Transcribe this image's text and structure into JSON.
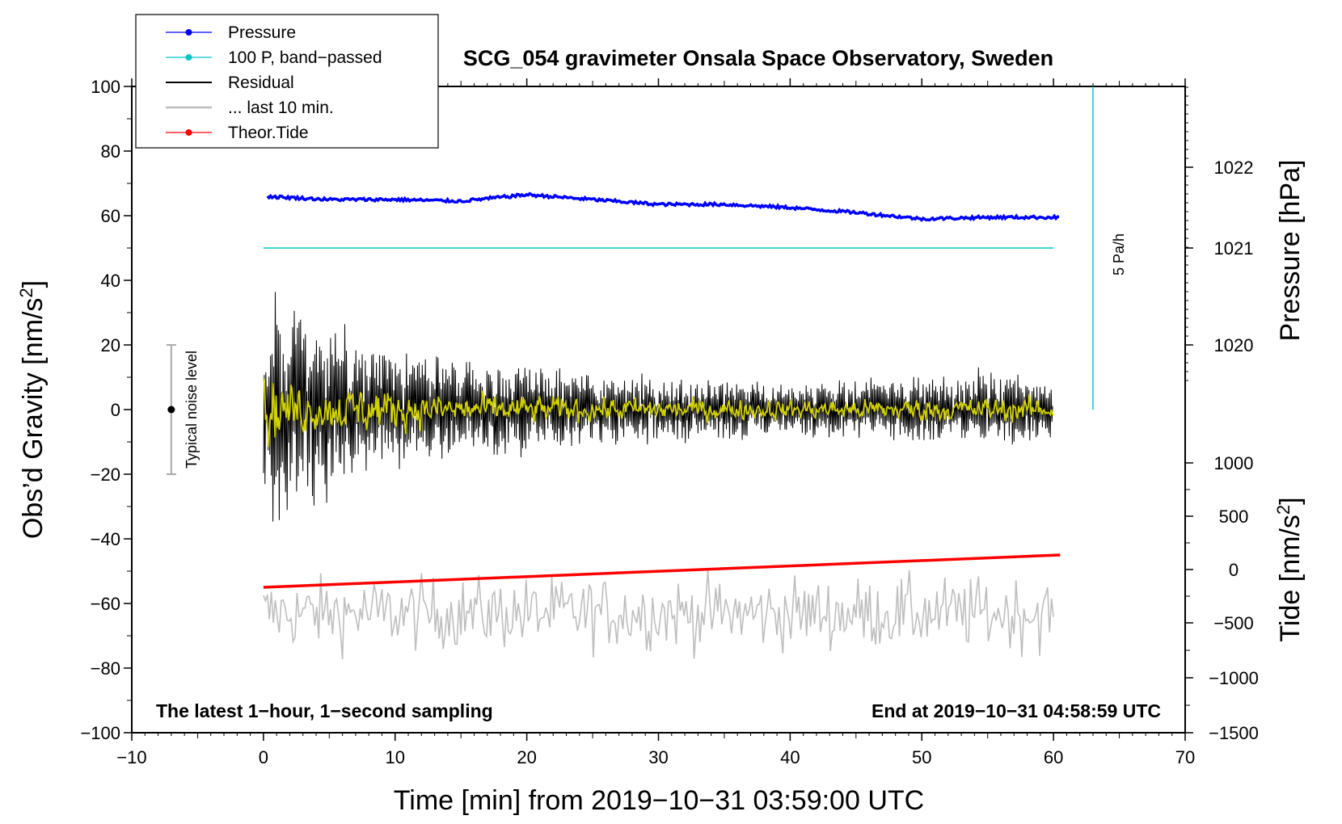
{
  "chart_data": {
    "type": "line",
    "title": "SCG_054 gravimeter Onsala Space Observatory, Sweden",
    "xlabel": "Time [min] from 2019−10−31 03:59:00 UTC",
    "ylabel_main": "Obs’d Gravity [nm/s",
    "ylabel_main_sup": "2",
    "ylabel_main_end": "]",
    "ylabel_pressure": "Pressure [hPa]",
    "ylabel_tide": "Tide [nm/s",
    "ylabel_tide_sup": "2",
    "ylabel_tide_end": "]",
    "xlim": [
      -10,
      70
    ],
    "ylim": [
      -100,
      100
    ],
    "x_ticks": [
      -10,
      0,
      10,
      20,
      30,
      40,
      50,
      60,
      70
    ],
    "x_tick_labels": [
      "−10",
      "0",
      "10",
      "20",
      "30",
      "40",
      "50",
      "60",
      "70"
    ],
    "y_ticks": [
      -100,
      -80,
      -60,
      -40,
      -20,
      0,
      20,
      40,
      60,
      80,
      100
    ],
    "y_tick_labels": [
      "−100",
      "−80",
      "−60",
      "−40",
      "−20",
      "0",
      "20",
      "40",
      "60",
      "80",
      "100"
    ],
    "pressure_axis": {
      "ticks": [
        1020,
        1021,
        1022
      ],
      "tick_labels": [
        "1020",
        "1021",
        "1022"
      ],
      "main_equiv": [
        20,
        50,
        75
      ]
    },
    "tide_axis": {
      "ticks": [
        -1500,
        -1000,
        -500,
        0,
        500,
        1000
      ],
      "tick_labels": [
        "−1500",
        "−1000",
        "−500",
        "0",
        "500",
        "1000"
      ],
      "main_equiv": [
        -100,
        -83,
        -66,
        -49.5,
        -33,
        -16.5
      ]
    },
    "series": [
      {
        "name": "Pressure",
        "color": "#0000ff",
        "x": [
          0,
          5,
          10,
          15,
          20,
          25,
          30,
          35,
          40,
          45,
          50,
          55,
          60
        ],
        "y": [
          66,
          65,
          65,
          64.5,
          66.5,
          65,
          63.5,
          63.5,
          62.5,
          61,
          59,
          59.5,
          59.5
        ]
      },
      {
        "name": "100 P, band−passed",
        "color": "#00c8c8",
        "x": [
          0,
          60
        ],
        "y": [
          50,
          50
        ]
      },
      {
        "name": "Residual",
        "color": "#000000",
        "x": [
          0,
          1,
          2,
          4,
          8,
          12,
          16,
          20,
          25,
          30,
          35,
          40,
          45,
          50,
          55,
          60
        ],
        "amplitude": [
          28,
          38,
          32,
          24,
          18,
          15,
          13,
          12,
          10,
          9,
          9,
          8,
          8,
          9,
          10,
          9
        ]
      },
      {
        "name": "... last 10 min.",
        "color": "#bebebe",
        "x": [
          0,
          60
        ],
        "center": -63,
        "amplitude": 10
      }
    ],
    "yellow_trace": {
      "color": "#d2d200",
      "x": [
        0,
        2,
        4,
        8,
        12,
        16,
        20,
        25,
        30,
        35,
        40,
        45,
        50,
        55,
        60
      ],
      "amplitude": [
        9,
        7,
        5,
        6,
        4,
        4,
        3.5,
        3,
        3,
        2.5,
        2.5,
        2.5,
        3,
        3,
        3
      ]
    },
    "theor_tide": {
      "name": "Theor.Tide",
      "color": "#ff0000",
      "x": [
        0,
        60.5
      ],
      "y": [
        -55,
        -45
      ]
    },
    "rate_bar": {
      "label": "5 Pa/h",
      "color": "#00c8c8",
      "x": 63,
      "y_range": [
        0,
        100
      ]
    },
    "noise_bar": {
      "label": "Typical noise level",
      "x": -7,
      "y_range": [
        -20,
        20
      ],
      "center": 0
    },
    "legend_position": "top-left",
    "footer_left": "The latest 1−hour, 1−second sampling",
    "footer_right": "End at 2019−10−31 04:58:59 UTC"
  },
  "legend": {
    "items": [
      {
        "label": "Pressure",
        "color": "#0000ff",
        "marker": true
      },
      {
        "label": "100 P, band−passed",
        "color": "#00c8c8",
        "marker": true
      },
      {
        "label": "Residual",
        "color": "#000000",
        "marker": false
      },
      {
        "label": "... last 10 min.",
        "color": "#bebebe",
        "marker": false
      },
      {
        "label": "Theor.Tide",
        "color": "#ff0000",
        "marker": true
      }
    ]
  }
}
